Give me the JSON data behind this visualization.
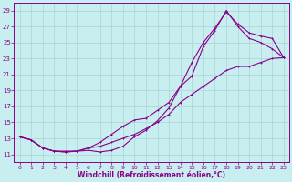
{
  "background_color": "#c8eef0",
  "grid_color": "#aed8dc",
  "line_color": "#880088",
  "xlabel": "Windchill (Refroidissement éolien,°C)",
  "xlim": [
    -0.5,
    23.5
  ],
  "ylim": [
    10,
    30
  ],
  "yticks": [
    11,
    13,
    15,
    17,
    19,
    21,
    23,
    25,
    27,
    29
  ],
  "xticks": [
    0,
    1,
    2,
    3,
    4,
    5,
    6,
    7,
    8,
    9,
    10,
    11,
    12,
    13,
    14,
    15,
    16,
    17,
    18,
    19,
    20,
    21,
    22,
    23
  ],
  "curve1_x": [
    0,
    1,
    2,
    3,
    4,
    5,
    6,
    7,
    8,
    9,
    10,
    11,
    12,
    13,
    14,
    15,
    16,
    17,
    18,
    19,
    20,
    21,
    22,
    23
  ],
  "curve1_y": [
    13.2,
    12.8,
    11.8,
    11.4,
    11.3,
    11.4,
    11.5,
    11.3,
    11.5,
    12.0,
    13.2,
    14.0,
    15.2,
    16.8,
    19.5,
    20.8,
    24.5,
    26.5,
    29.0,
    27.0,
    25.5,
    25.0,
    24.2,
    23.1
  ],
  "curve2_x": [
    0,
    1,
    2,
    3,
    4,
    5,
    6,
    7,
    8,
    9,
    10,
    11,
    12,
    13,
    14,
    15,
    16,
    17,
    18,
    19,
    20,
    21,
    22,
    23
  ],
  "curve2_y": [
    13.2,
    12.8,
    11.8,
    11.4,
    11.3,
    11.4,
    11.8,
    12.5,
    13.5,
    14.5,
    15.3,
    15.5,
    16.5,
    17.5,
    19.5,
    22.5,
    25.0,
    26.8,
    28.8,
    27.3,
    26.2,
    25.8,
    25.5,
    23.1
  ],
  "curve3_x": [
    0,
    1,
    2,
    3,
    4,
    5,
    6,
    7,
    8,
    9,
    10,
    11,
    12,
    13,
    14,
    15,
    16,
    17,
    18,
    19,
    20,
    21,
    22,
    23
  ],
  "curve3_y": [
    13.2,
    12.8,
    11.8,
    11.4,
    11.4,
    11.4,
    11.8,
    12.0,
    12.5,
    13.0,
    13.5,
    14.2,
    15.0,
    16.0,
    17.5,
    18.5,
    19.5,
    20.5,
    21.5,
    22.0,
    22.0,
    22.5,
    23.0,
    23.1
  ]
}
